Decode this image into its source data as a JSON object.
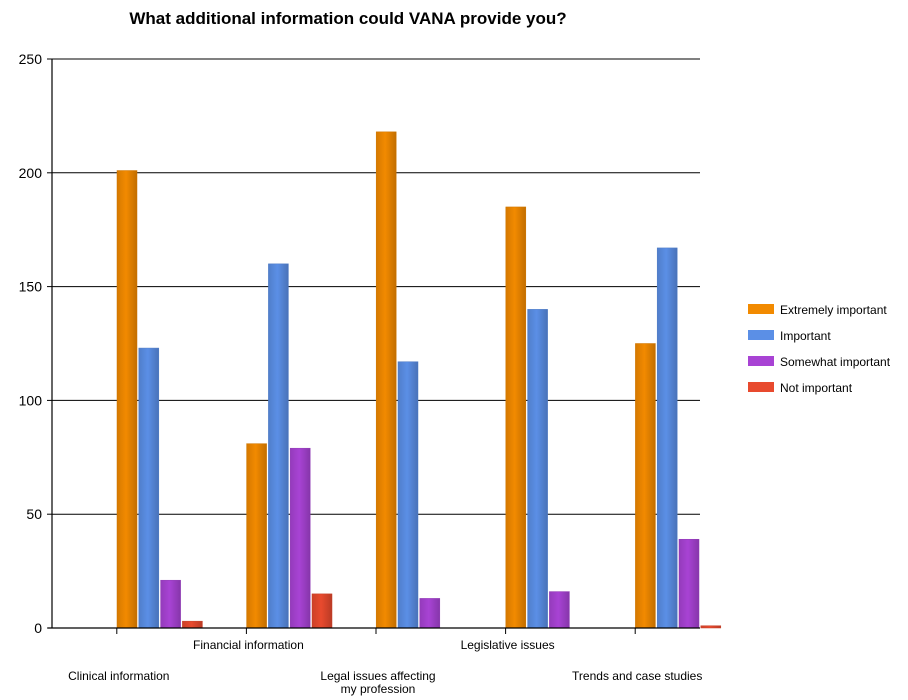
{
  "chart_data": {
    "type": "bar",
    "title": "What additional information could VANA provide you?",
    "xlabel": "",
    "ylabel": "",
    "ylim": [
      0,
      250
    ],
    "yticks": [
      0,
      50,
      100,
      150,
      200,
      250
    ],
    "grid": true,
    "legend_position": "right",
    "categories": [
      "Clinical information",
      "Financial information",
      "Legal issues affecting my profession",
      "Legislative issues",
      "Trends and case studies"
    ],
    "series": [
      {
        "name": "Extremely important",
        "color": "#f28a00",
        "values": [
          201,
          81,
          218,
          185,
          125
        ]
      },
      {
        "name": "Important",
        "color": "#5b8fe6",
        "values": [
          123,
          160,
          117,
          140,
          167
        ]
      },
      {
        "name": "Somewhat important",
        "color": "#a843d4",
        "values": [
          21,
          79,
          13,
          16,
          39
        ]
      },
      {
        "name": "Not important",
        "color": "#e84a2e",
        "values": [
          3,
          15,
          0,
          0,
          1
        ]
      }
    ]
  }
}
